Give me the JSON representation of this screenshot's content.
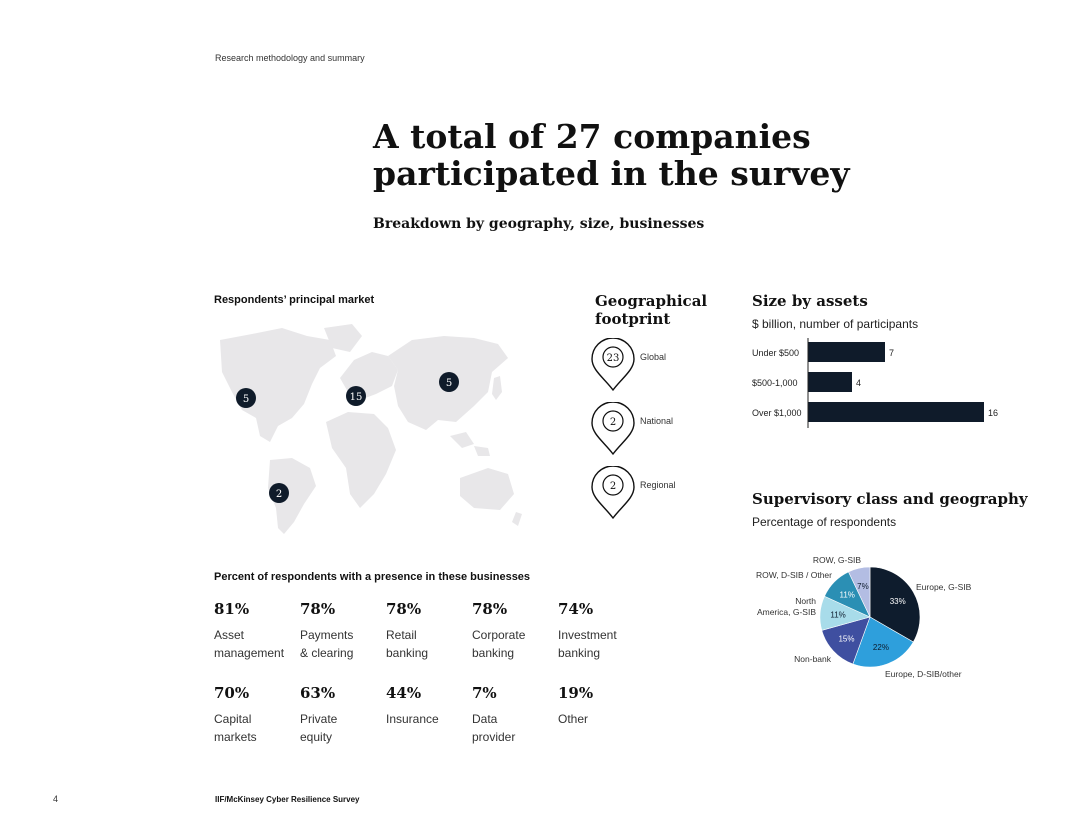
{
  "header": {
    "section_label": "Research methodology and summary",
    "headline_line1": "A total of 27 companies",
    "headline_line2": "participated in the survey",
    "subtitle": "Breakdown by geography, size, businesses"
  },
  "map": {
    "title": "Respondents’ principal market",
    "markers": [
      {
        "region": "North America",
        "count": "5"
      },
      {
        "region": "Europe",
        "count": "15"
      },
      {
        "region": "Asia",
        "count": "5"
      },
      {
        "region": "South America",
        "count": "2"
      }
    ]
  },
  "footprint": {
    "title_line1": "Geographical",
    "title_line2": "footprint",
    "items": [
      {
        "count": "23",
        "label": "Global"
      },
      {
        "count": "2",
        "label": "National"
      },
      {
        "count": "2",
        "label": "Regional"
      }
    ]
  },
  "size_by_assets": {
    "title": "Size by assets",
    "subtitle": "$ billion, number of participants"
  },
  "supervisory": {
    "title": "Supervisory class and geography",
    "subtitle": "Percentage of respondents"
  },
  "chart_data": [
    {
      "type": "bar",
      "orientation": "horizontal",
      "title": "Size by assets",
      "subtitle": "$ billion, number of participants",
      "categories": [
        "Under $500",
        "$500-1,000",
        "Over $1,000"
      ],
      "values": [
        7,
        4,
        16
      ],
      "bar_color": "#0f1b2a"
    },
    {
      "type": "pie",
      "title": "Supervisory class and geography",
      "subtitle": "Percentage of respondents",
      "slices": [
        {
          "label": "Europe, G-SIB",
          "value": 33,
          "display": "33%",
          "color": "#0e1c2d",
          "text_color": "#ffffff"
        },
        {
          "label": "Europe, D-SIB/other",
          "value": 22,
          "display": "22%",
          "color": "#2e9fdc",
          "text_color": "#0e1c2d"
        },
        {
          "label": "Non-bank",
          "value": 15,
          "display": "15%",
          "color": "#3f4fa0",
          "text_color": "#ffffff"
        },
        {
          "label": "North America, G-SIB",
          "value": 11,
          "display": "11%",
          "color": "#a8dcea",
          "text_color": "#0e1c2d"
        },
        {
          "label": "ROW, D-SIB / Other",
          "value": 11,
          "display": "11%",
          "color": "#2b8fb4",
          "text_color": "#ffffff"
        },
        {
          "label": "ROW, G-SIB",
          "value": 7,
          "display": "7%",
          "color": "#b3bde3",
          "text_color": "#0e1c2d"
        }
      ]
    }
  ],
  "businesses": {
    "title": "Percent of respondents with a presence in these businesses",
    "items": [
      {
        "pct": "81%",
        "line1": "Asset",
        "line2": "management"
      },
      {
        "pct": "78%",
        "line1": "Payments",
        "line2": "& clearing"
      },
      {
        "pct": "78%",
        "line1": "Retail",
        "line2": "banking"
      },
      {
        "pct": "78%",
        "line1": "Corporate",
        "line2": "banking"
      },
      {
        "pct": "74%",
        "line1": "Investment",
        "line2": "banking"
      },
      {
        "pct": "70%",
        "line1": "Capital",
        "line2": "markets"
      },
      {
        "pct": "63%",
        "line1": "Private",
        "line2": "equity"
      },
      {
        "pct": "44%",
        "line1": "Insurance",
        "line2": ""
      },
      {
        "pct": "7%",
        "line1": "Data",
        "line2": "provider"
      },
      {
        "pct": "19%",
        "line1": "Other",
        "line2": ""
      }
    ]
  },
  "footer": {
    "page_number": "4",
    "title": "IIF/McKinsey Cyber Resilience Survey"
  },
  "colors": {
    "navy": "#0f1b2a",
    "map_land": "#e8e7e9"
  }
}
